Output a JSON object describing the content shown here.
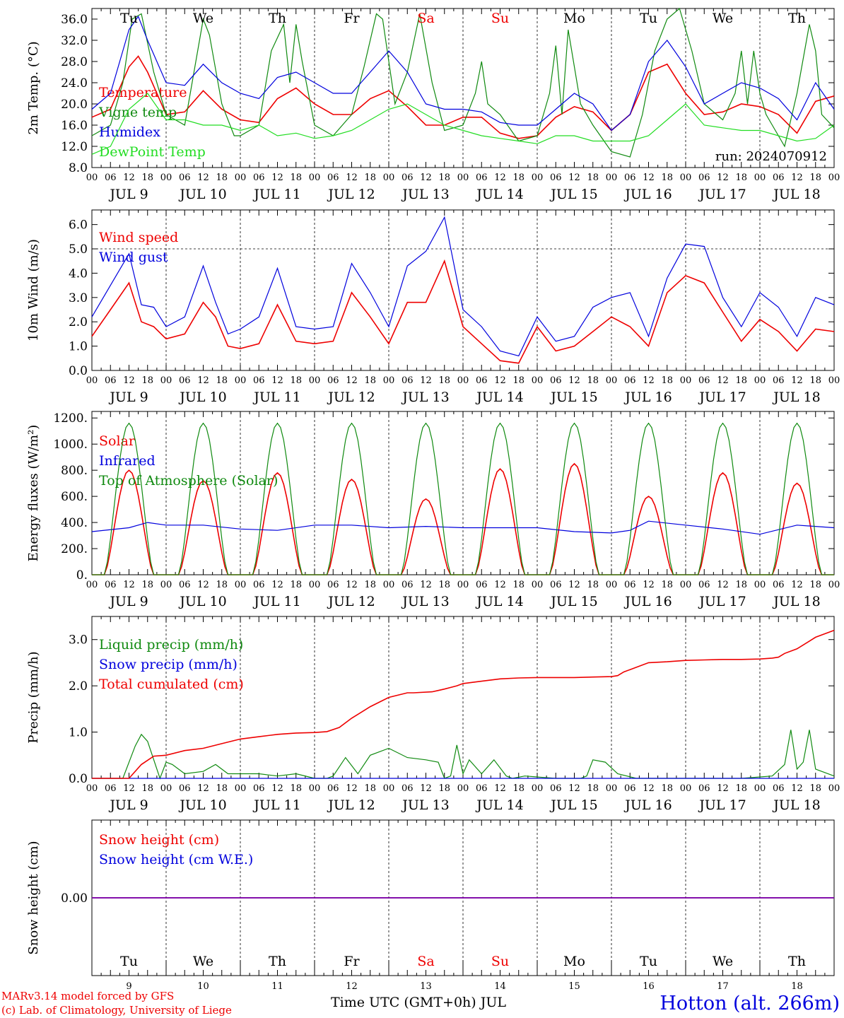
{
  "footer": {
    "credit_line1": "MARv3.14 model forced by GFS",
    "credit_line2": "(c) Lab. of Climatology, University of Liege",
    "axis_title": "Time UTC (GMT+0h) JUL",
    "station": "Hotton (alt. 266m)"
  },
  "run_label": "run: 2024070912",
  "hour_labels": [
    "00",
    "06",
    "12",
    "18"
  ],
  "days": [
    {
      "weekday": "Tu",
      "num": "9",
      "label": "JUL  9",
      "weekend": false
    },
    {
      "weekday": "We",
      "num": "10",
      "label": "JUL 10",
      "weekend": false
    },
    {
      "weekday": "Th",
      "num": "11",
      "label": "JUL 11",
      "weekend": false
    },
    {
      "weekday": "Fr",
      "num": "12",
      "label": "JUL 12",
      "weekend": false
    },
    {
      "weekday": "Sa",
      "num": "13",
      "label": "JUL 13",
      "weekend": true
    },
    {
      "weekday": "Su",
      "num": "14",
      "label": "JUL 14",
      "weekend": true
    },
    {
      "weekday": "Mo",
      "num": "15",
      "label": "JUL 15",
      "weekend": false
    },
    {
      "weekday": "Tu",
      "num": "16",
      "label": "JUL 16",
      "weekend": false
    },
    {
      "weekday": "We",
      "num": "17",
      "label": "JUL 17",
      "weekend": false
    },
    {
      "weekday": "Th",
      "num": "18",
      "label": "JUL 18",
      "weekend": false
    }
  ],
  "colors": {
    "red": "#ee0000",
    "green": "#108a10",
    "lightgreen": "#22dd22",
    "blue": "#0000dd",
    "purple": "#8800aa",
    "weekend": "#ee0000",
    "axis": "#000000"
  },
  "chart_data": [
    {
      "type": "line",
      "ylabel": "2m Temp. (°C)",
      "ylim": [
        8,
        38
      ],
      "yticks": [
        8,
        12,
        16,
        20,
        24,
        28,
        32,
        36
      ],
      "ytick_labels": [
        "8.0",
        "12.0",
        "16.0",
        "20.0",
        "24.0",
        "28.0",
        "32.0",
        "36.0"
      ],
      "x_unit": "hours since 2024-07-09 00 UTC",
      "xlim": [
        0,
        240
      ],
      "series": [
        {
          "name": "Temperature",
          "color": "red",
          "legend": true,
          "x": [
            0,
            6,
            12,
            15,
            18,
            24,
            30,
            36,
            42,
            48,
            54,
            60,
            66,
            72,
            78,
            84,
            90,
            96,
            102,
            108,
            114,
            120,
            126,
            132,
            138,
            144,
            150,
            156,
            162,
            168,
            174,
            180,
            186,
            192,
            198,
            204,
            210,
            216,
            222,
            228,
            234,
            240
          ],
          "y": [
            17.5,
            19,
            27,
            29,
            26,
            18,
            18.5,
            22.5,
            19,
            17,
            16.5,
            21,
            23,
            20,
            18,
            18,
            21,
            22.5,
            19.5,
            16,
            16,
            17.5,
            17.5,
            14.5,
            13.5,
            14,
            17.5,
            19.5,
            18.5,
            15,
            18,
            26,
            27.5,
            22,
            18,
            18.5,
            20,
            19.5,
            18,
            14.5,
            20.5,
            21.5
          ]
        },
        {
          "name": "Vigne temp",
          "color": "green",
          "legend": true,
          "x": [
            0,
            6,
            10,
            13,
            16,
            20,
            24,
            30,
            36,
            38,
            42,
            46,
            48,
            54,
            58,
            62,
            64,
            66,
            68,
            72,
            78,
            84,
            88,
            92,
            94,
            98,
            102,
            106,
            110,
            114,
            120,
            124,
            126,
            128,
            132,
            138,
            144,
            148,
            150,
            152,
            154,
            158,
            162,
            168,
            174,
            178,
            182,
            186,
            190,
            194,
            198,
            204,
            208,
            210,
            212,
            214,
            216,
            218,
            220,
            224,
            228,
            232,
            234,
            236,
            240
          ],
          "y": [
            14,
            16,
            24,
            36,
            37,
            26,
            18,
            16,
            36,
            33,
            20,
            14,
            14,
            16,
            30,
            35,
            24,
            35,
            28,
            16,
            14,
            18,
            27,
            37,
            36,
            20,
            26,
            37,
            24,
            15,
            16,
            22,
            28,
            20,
            18,
            13,
            14,
            22,
            31,
            18,
            34,
            20,
            16,
            11,
            10,
            18,
            30,
            36,
            38,
            30,
            20,
            17,
            22,
            30,
            20,
            30,
            22,
            18,
            16,
            12,
            22,
            35,
            30,
            18,
            15.5
          ]
        },
        {
          "name": "Humidex",
          "color": "blue",
          "legend": true,
          "x": [
            0,
            6,
            12,
            15,
            18,
            24,
            30,
            36,
            42,
            48,
            54,
            60,
            66,
            72,
            78,
            84,
            90,
            96,
            102,
            108,
            114,
            120,
            126,
            132,
            138,
            144,
            150,
            156,
            162,
            168,
            174,
            180,
            186,
            192,
            198,
            204,
            210,
            216,
            222,
            228,
            234,
            240
          ],
          "y": [
            19,
            22,
            34,
            36.5,
            32,
            24,
            23.5,
            27.5,
            24,
            22,
            21,
            25,
            26,
            24,
            22,
            22,
            26,
            30,
            26,
            20,
            19,
            19,
            18.5,
            16.5,
            16,
            16,
            19,
            22,
            20,
            15,
            18,
            28,
            32,
            27,
            20,
            22,
            24,
            23,
            21,
            17,
            24,
            19
          ]
        },
        {
          "name": "DewPoint Temp",
          "color": "lightgreen",
          "legend": true,
          "x": [
            0,
            6,
            12,
            18,
            24,
            30,
            36,
            42,
            48,
            54,
            60,
            66,
            72,
            78,
            84,
            90,
            96,
            102,
            108,
            114,
            120,
            126,
            132,
            138,
            144,
            150,
            156,
            162,
            168,
            174,
            180,
            186,
            192,
            198,
            204,
            210,
            216,
            222,
            228,
            234,
            240
          ],
          "y": [
            10.5,
            12,
            19,
            22,
            17,
            17,
            16,
            16,
            15,
            16,
            14,
            14.5,
            13.5,
            14,
            15,
            17,
            19,
            20,
            18,
            16,
            15,
            14,
            13.5,
            13,
            12.5,
            14,
            14,
            13,
            13,
            13,
            14,
            17,
            20,
            16,
            15.5,
            15,
            15,
            14,
            13,
            13.5,
            16
          ]
        }
      ]
    },
    {
      "type": "line",
      "ylabel": "10m Wind (m/s)",
      "ylim": [
        0,
        6.6
      ],
      "yticks": [
        0,
        1,
        2,
        3,
        4,
        5,
        6
      ],
      "ytick_labels": [
        "0.0",
        "1.0",
        "2.0",
        "3.0",
        "4.0",
        "5.0",
        "6.0"
      ],
      "reference_line": 5.0,
      "xlim": [
        0,
        240
      ],
      "series": [
        {
          "name": "Wind speed",
          "color": "red",
          "legend": true,
          "x": [
            0,
            6,
            12,
            16,
            20,
            24,
            30,
            36,
            40,
            44,
            48,
            54,
            60,
            66,
            72,
            78,
            84,
            90,
            96,
            102,
            108,
            114,
            120,
            126,
            132,
            138,
            144,
            150,
            156,
            162,
            168,
            174,
            180,
            186,
            192,
            198,
            204,
            210,
            216,
            222,
            228,
            234,
            240
          ],
          "y": [
            1.4,
            2.5,
            3.6,
            2,
            1.8,
            1.3,
            1.5,
            2.8,
            2.2,
            1,
            0.9,
            1.1,
            2.7,
            1.2,
            1.1,
            1.2,
            3.2,
            2.2,
            1.1,
            2.8,
            2.8,
            4.5,
            1.8,
            1.1,
            0.4,
            0.3,
            1.8,
            0.8,
            1,
            1.6,
            2.2,
            1.8,
            1,
            3.2,
            3.9,
            3.6,
            2.4,
            1.2,
            2.1,
            1.6,
            0.8,
            1.7,
            1.6
          ]
        },
        {
          "name": "Wind gust",
          "color": "blue",
          "legend": true,
          "x": [
            0,
            6,
            12,
            16,
            20,
            24,
            30,
            36,
            40,
            44,
            48,
            54,
            60,
            66,
            72,
            78,
            84,
            90,
            96,
            102,
            108,
            114,
            120,
            126,
            132,
            138,
            144,
            150,
            156,
            162,
            168,
            174,
            180,
            186,
            192,
            198,
            204,
            210,
            216,
            222,
            228,
            234,
            240
          ],
          "y": [
            2.2,
            3.5,
            4.8,
            2.7,
            2.6,
            1.8,
            2.2,
            4.3,
            2.8,
            1.5,
            1.7,
            2.2,
            4.2,
            1.8,
            1.7,
            1.8,
            4.4,
            3.2,
            1.8,
            4.3,
            4.9,
            6.3,
            2.5,
            1.8,
            0.8,
            0.6,
            2.2,
            1.2,
            1.4,
            2.6,
            3,
            3.2,
            1.4,
            3.8,
            5.2,
            5.1,
            3,
            1.8,
            3.2,
            2.6,
            1.4,
            3,
            2.7
          ]
        }
      ]
    },
    {
      "type": "line",
      "ylabel": "Energy fluxes (W/m²)",
      "ylim": [
        0,
        1250
      ],
      "yticks": [
        0,
        200,
        400,
        600,
        800,
        1000,
        1200
      ],
      "ytick_labels": [
        "0.",
        "200.",
        "400.",
        "600.",
        "800.",
        "1000.",
        "1200."
      ],
      "xlim": [
        0,
        240
      ],
      "series": [
        {
          "name": "Solar",
          "color": "red",
          "legend": true,
          "daily_peak": [
            800,
            720,
            780,
            730,
            580,
            810,
            850,
            600,
            780,
            700
          ]
        },
        {
          "name": "Infrared",
          "color": "blue",
          "legend": true,
          "x": [
            0,
            12,
            18,
            24,
            36,
            48,
            60,
            72,
            84,
            96,
            108,
            120,
            132,
            144,
            156,
            168,
            174,
            180,
            192,
            204,
            216,
            228,
            240
          ],
          "y": [
            330,
            360,
            400,
            380,
            380,
            350,
            340,
            380,
            380,
            360,
            370,
            360,
            360,
            360,
            330,
            320,
            340,
            410,
            380,
            350,
            310,
            380,
            360
          ]
        },
        {
          "name": "Top of Atmosphere (Solar)",
          "color": "green",
          "legend": true,
          "daily_peak": [
            1160,
            1160,
            1160,
            1160,
            1160,
            1160,
            1160,
            1160,
            1160,
            1160
          ]
        }
      ]
    },
    {
      "type": "line",
      "ylabel": "Precip (mm/h)",
      "ylim": [
        0,
        3.5
      ],
      "yticks": [
        0,
        1,
        2,
        3
      ],
      "ytick_labels": [
        "0.0",
        "1.0",
        "2.0",
        "3.0"
      ],
      "xlim": [
        0,
        240
      ],
      "series": [
        {
          "name": "Liquid precip (mm/h)",
          "color": "green",
          "legend": true,
          "x": [
            0,
            10,
            14,
            16,
            18,
            22,
            24,
            26,
            30,
            36,
            40,
            44,
            48,
            54,
            60,
            66,
            72,
            76,
            78,
            82,
            86,
            90,
            96,
            102,
            108,
            112,
            114,
            116,
            118,
            120,
            122,
            126,
            130,
            134,
            136,
            140,
            150,
            158,
            160,
            162,
            166,
            170,
            176,
            180,
            190,
            200,
            210,
            220,
            224,
            226,
            228,
            230,
            232,
            234,
            236,
            240
          ],
          "y": [
            0,
            0,
            0.7,
            0.95,
            0.8,
            0,
            0.35,
            0.3,
            0.1,
            0.15,
            0.3,
            0.1,
            0.1,
            0.1,
            0.05,
            0.1,
            0,
            0,
            0.05,
            0.45,
            0.1,
            0.5,
            0.65,
            0.45,
            0.4,
            0.35,
            0,
            0.05,
            0.72,
            0.1,
            0.4,
            0.1,
            0.4,
            0.05,
            0,
            0.05,
            0,
            0,
            0.05,
            0.4,
            0.35,
            0.1,
            0,
            0,
            0,
            0,
            0,
            0.05,
            0.3,
            1.05,
            0.2,
            0.35,
            1.05,
            0.2,
            0.15,
            0.05
          ]
        },
        {
          "name": "Snow precip (mm/h)",
          "color": "blue",
          "legend": true,
          "x": [
            0,
            240
          ],
          "y": [
            0,
            0
          ]
        },
        {
          "name": "Total cumulated (cm)",
          "color": "red",
          "legend": true,
          "x": [
            0,
            12,
            16,
            20,
            24,
            30,
            36,
            42,
            48,
            54,
            60,
            66,
            72,
            76,
            80,
            84,
            90,
            96,
            102,
            104,
            110,
            112,
            114,
            118,
            120,
            126,
            132,
            138,
            144,
            150,
            156,
            162,
            168,
            170,
            172,
            174,
            180,
            186,
            192,
            198,
            204,
            210,
            216,
            220,
            222,
            224,
            228,
            234,
            240
          ],
          "y": [
            0,
            0,
            0.3,
            0.48,
            0.5,
            0.6,
            0.65,
            0.75,
            0.85,
            0.9,
            0.95,
            0.98,
            0.99,
            1.01,
            1.1,
            1.3,
            1.55,
            1.75,
            1.85,
            1.85,
            1.87,
            1.9,
            1.93,
            2.0,
            2.05,
            2.1,
            2.15,
            2.17,
            2.18,
            2.18,
            2.18,
            2.19,
            2.2,
            2.22,
            2.3,
            2.35,
            2.5,
            2.52,
            2.55,
            2.56,
            2.57,
            2.57,
            2.58,
            2.6,
            2.62,
            2.7,
            2.8,
            3.05,
            3.2
          ]
        }
      ]
    },
    {
      "type": "line",
      "ylabel": "Snow height (cm)",
      "ylim": [
        -1,
        1
      ],
      "yticks": [
        0
      ],
      "ytick_labels": [
        "0.00"
      ],
      "xlim": [
        0,
        240
      ],
      "series": [
        {
          "name": "Snow height (cm)",
          "color": "red",
          "legend": true,
          "x": [
            0,
            240
          ],
          "y": [
            0,
            0
          ]
        },
        {
          "name": "Snow height (cm W.E.)",
          "color": "blue",
          "legend": true,
          "x": [
            0,
            240
          ],
          "y": [
            0,
            0
          ]
        }
      ]
    }
  ]
}
